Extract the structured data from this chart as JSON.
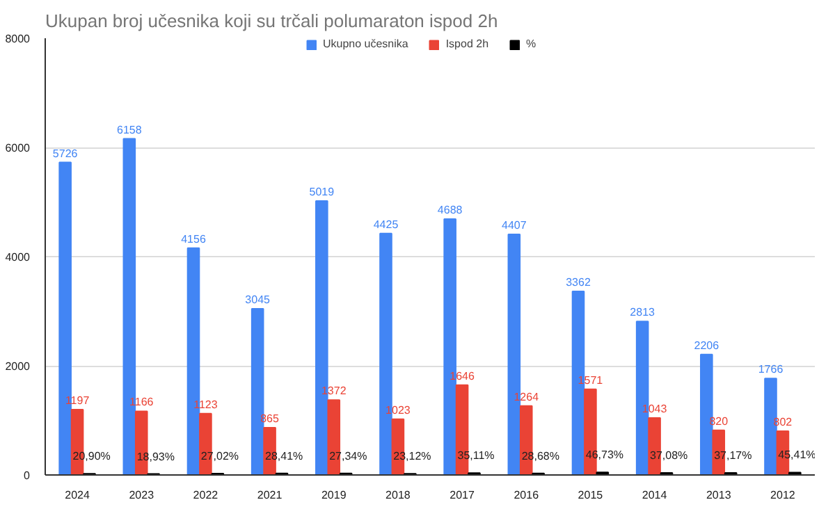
{
  "chart_data": {
    "type": "bar",
    "title": "Ukupan broj učesnika koji su trčali polumaraton ispod 2h",
    "categories": [
      "2024",
      "2023",
      "2022",
      "2021",
      "2019",
      "2018",
      "2017",
      "2016",
      "2015",
      "2014",
      "2013",
      "2012"
    ],
    "series": [
      {
        "name": "Ukupno učesnika",
        "color": "#4285f4",
        "values": [
          5726,
          6158,
          4156,
          3045,
          5019,
          4425,
          4688,
          4407,
          3362,
          2813,
          2206,
          1766
        ]
      },
      {
        "name": "Ispod 2h",
        "color": "#ea4335",
        "values": [
          1197,
          1166,
          1123,
          865,
          1372,
          1023,
          1646,
          1264,
          1571,
          1043,
          820,
          802
        ]
      },
      {
        "name": "%",
        "color": "#000000",
        "values": [
          20.9,
          18.93,
          27.02,
          28.41,
          27.34,
          23.12,
          35.11,
          28.68,
          46.73,
          37.08,
          37.17,
          45.41
        ],
        "value_labels": [
          "20,90%",
          "18,93%",
          "27,02%",
          "28,41%",
          "27,34%",
          "23,12%",
          "35,11%",
          "28,68%",
          "46,73%",
          "37,08%",
          "37,17%",
          "45,41%"
        ]
      }
    ],
    "data_labels": true,
    "ylim": [
      0,
      8000
    ],
    "yticks": [
      0,
      2000,
      4000,
      6000,
      8000
    ],
    "grid": "y",
    "legend": "top"
  }
}
